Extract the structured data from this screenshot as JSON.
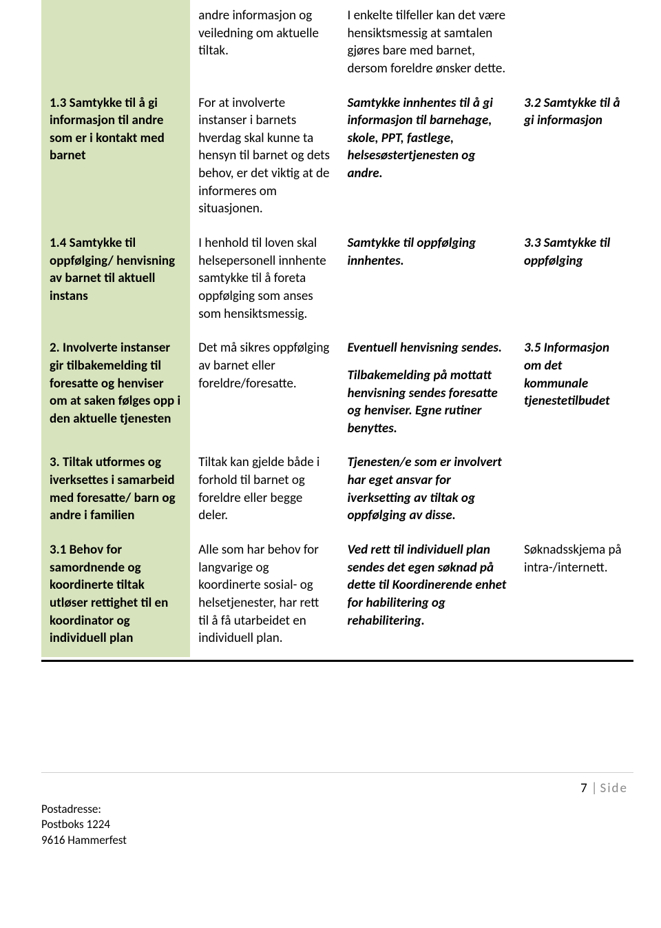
{
  "table": {
    "colors": {
      "col1_bg": "#d7e3bd",
      "page_bg": "#ffffff",
      "text": "#000000",
      "footer_rule": "#d0cfcf",
      "side_text": "#8a8a8a",
      "separator": "#000000"
    },
    "rows": [
      {
        "col1": "",
        "col2": "andre informasjon og veiledning om aktuelle tiltak.",
        "col3": "I enkelte tilfeller kan det være hensiktsmessig at samtalen gjøres bare med barnet, dersom foreldre ønsker dette.",
        "col4": ""
      },
      {
        "col1": "1.3 Samtykke til å gi informasjon til andre som er i kontakt med barnet",
        "col2": "For at involverte instanser i barnets hverdag skal kunne ta hensyn til barnet og dets behov, er det viktig at de informeres om situasjonen.",
        "col3": "Samtykke innhentes til å gi informasjon til barnehage, skole, PPT, fastlege, helsesøstertjenesten og andre.",
        "col4": "3.2 Samtykke til å gi informasjon"
      },
      {
        "col1": "1.4 Samtykke til oppfølging/ henvisning av barnet til aktuell instans",
        "col2": "I henhold til loven skal helsepersonell innhente samtykke til å foreta oppfølging som anses som hensiktsmessig.",
        "col3": "Samtykke til oppfølging innhentes.",
        "col4": "3.3 Samtykke til oppfølging"
      },
      {
        "col1": "2. Involverte instanser gir tilbakemelding til foresatte og henviser om at saken følges opp i den aktuelle tjenesten",
        "col2": "Det må sikres oppfølging av barnet eller foreldre/foresatte.",
        "col3a": "Eventuell henvisning sendes.",
        "col3b": "Tilbakemelding på mottatt henvisning sendes foresatte og henviser. Egne rutiner benyttes.",
        "col4": "3.5 Informasjon om det kommunale tjenestetilbudet"
      },
      {
        "col1": "3. Tiltak utformes og iverksettes i samarbeid med foresatte/ barn og andre i familien",
        "col2": "Tiltak kan gjelde både i forhold til barnet og foreldre eller begge deler.",
        "col3": "Tjenesten/e som er involvert har eget ansvar for iverksetting av tiltak og oppfølging av disse.",
        "col4": ""
      },
      {
        "col1": "3.1 Behov for samordnende og koordinerte tiltak utløser rettighet til en koordinator og individuell plan",
        "col2": "Alle som har behov for langvarige og koordinerte sosial- og helsetjenester, har rett til å få utarbeidet en individuell plan.",
        "col3": "Ved rett til individuell plan sendes det egen søknad på dette til Koordinerende enhet for habilitering og rehabilitering.",
        "col4": "Søknadsskjema på intra-/internett."
      }
    ]
  },
  "footer": {
    "page_number": "7",
    "page_label": "Side",
    "address_label": "Postadresse:",
    "address_line1": "Postboks 1224",
    "address_line2": "9616 Hammerfest"
  }
}
